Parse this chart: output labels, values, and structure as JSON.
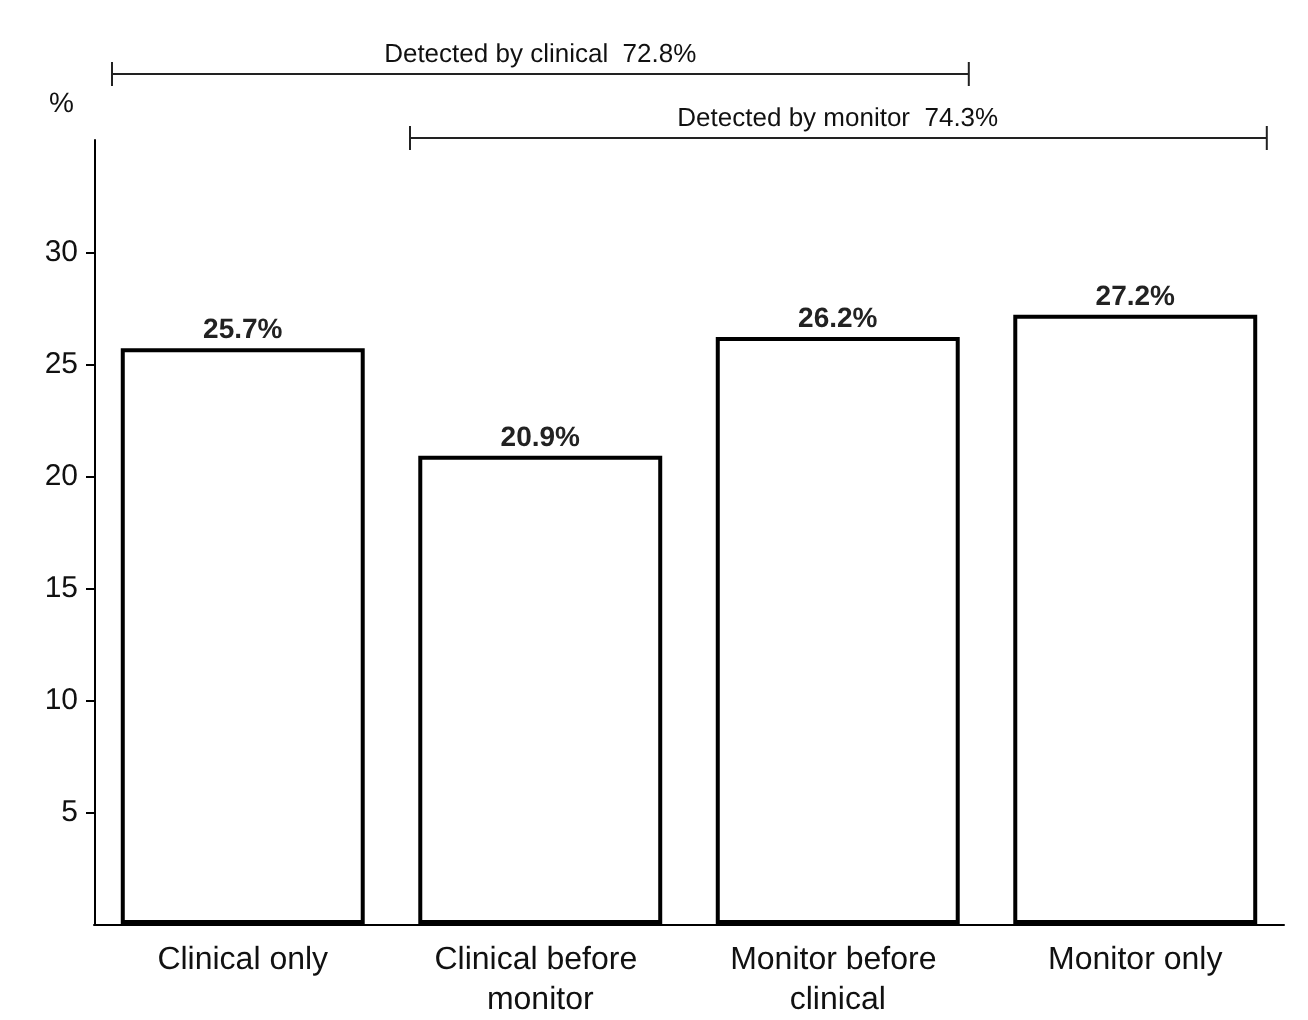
{
  "chart_data": {
    "type": "bar",
    "ylabel": "%",
    "categories": [
      "Clinical only",
      "Clinical before monitor",
      "Monitor before clinical",
      "Monitor only"
    ],
    "values": [
      25.7,
      20.9,
      26.2,
      27.2
    ],
    "value_labels": [
      "25.7%",
      "20.9%",
      "26.2%",
      "27.2%"
    ],
    "color": "#ffffff",
    "ylim": [
      0,
      35
    ],
    "yticks": [
      5,
      10,
      15,
      20,
      25,
      30
    ],
    "grid": false,
    "annotations": [
      "Detected by clinical  72.8%",
      "Detected by monitor  74.3%"
    ]
  }
}
